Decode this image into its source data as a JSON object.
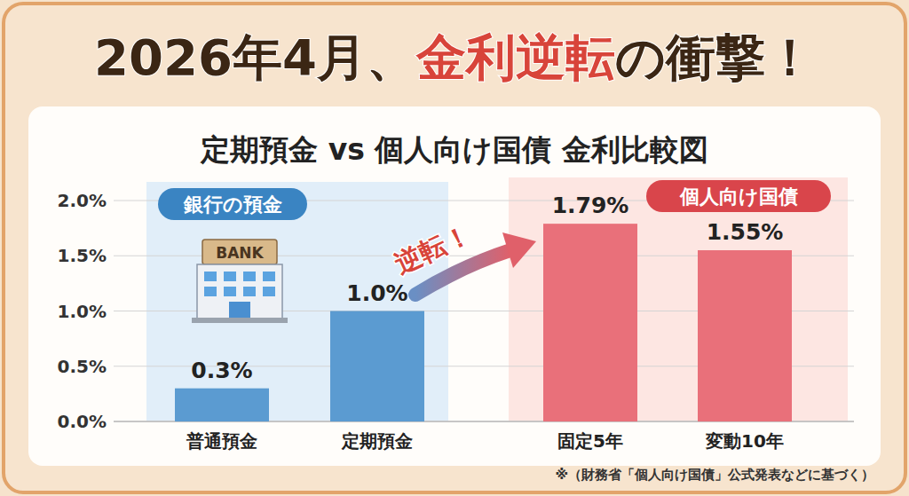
{
  "header": {
    "title_before": "2026年4月、",
    "title_highlight": "金利逆転",
    "title_after": "の衝撃！"
  },
  "chart_data": {
    "type": "bar",
    "title": "定期預金 vs 個人向け国債 金利比較図",
    "categories": [
      "普通預金",
      "定期預金",
      "固定5年",
      "変動10年"
    ],
    "values": [
      0.3,
      1.0,
      1.79,
      1.55
    ],
    "value_labels": [
      "0.3%",
      "1.0%",
      "1.79%",
      "1.55%"
    ],
    "colors": [
      "#5b9bd1",
      "#5b9bd1",
      "#e9707a",
      "#e9707a"
    ],
    "ylim": [
      0,
      2
    ],
    "yticks": [
      {
        "value": 0,
        "label": "0.0%"
      },
      {
        "value": 0.5,
        "label": "0.5%"
      },
      {
        "value": 1,
        "label": "1.0%"
      },
      {
        "value": 1.5,
        "label": "1.5%"
      },
      {
        "value": 2,
        "label": "2.0%"
      }
    ],
    "grid": true,
    "data_labels": true,
    "annotations": [
      "銀行の預金",
      "個人向け国債",
      "逆転！",
      "BANK",
      "※（財務省「個人向け国債」公式発表などに基づく）"
    ]
  }
}
